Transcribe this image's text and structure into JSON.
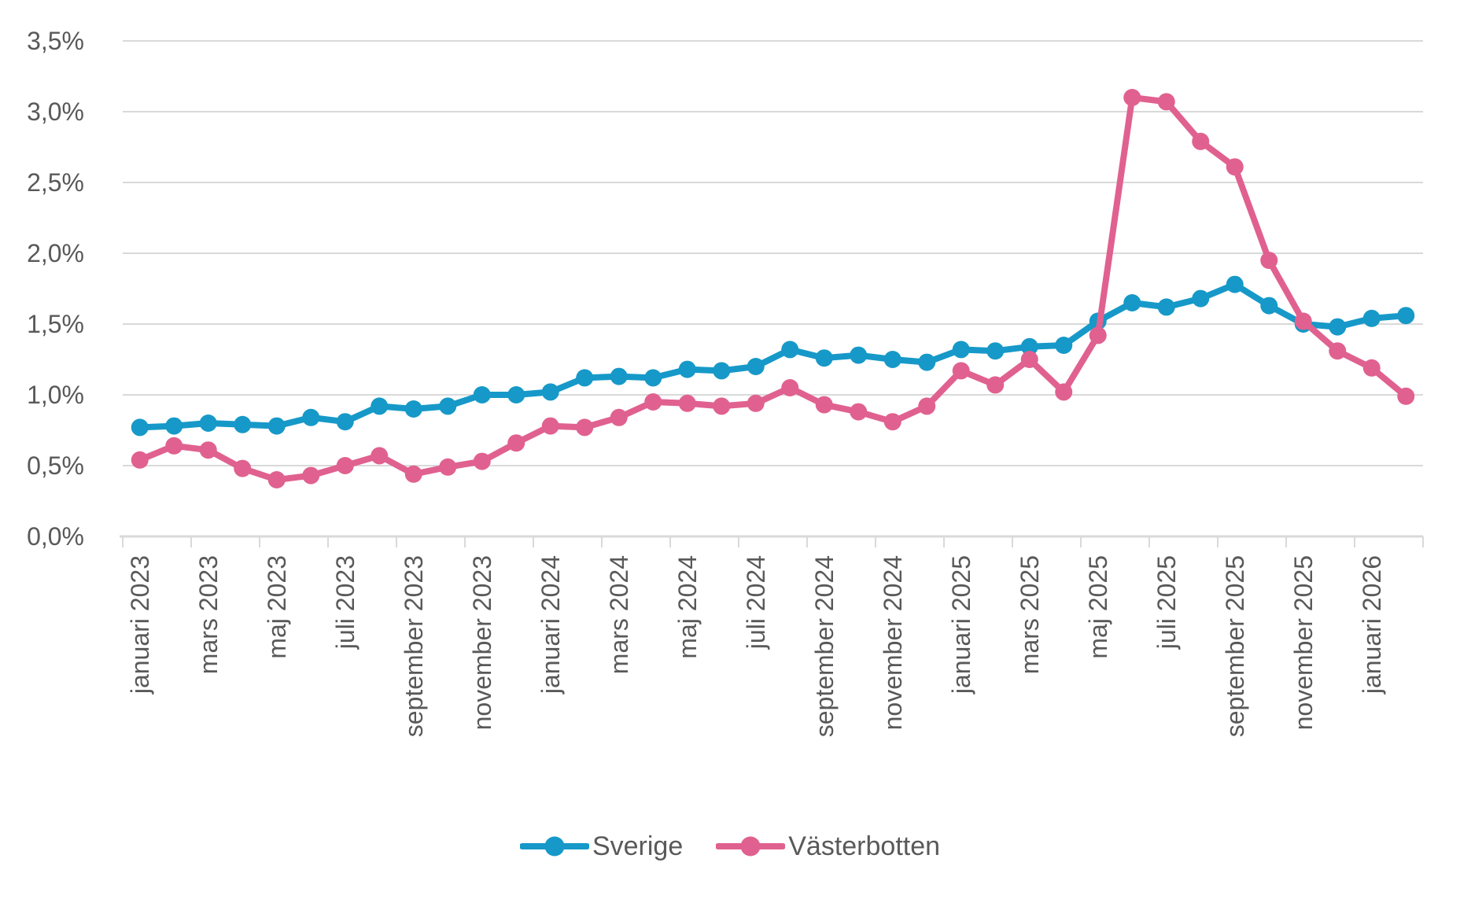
{
  "chart_data": {
    "type": "line",
    "title": "",
    "xlabel": "",
    "ylabel": "",
    "categories": [
      "januari 2023",
      "februari 2023",
      "mars 2023",
      "april 2023",
      "maj 2023",
      "juni 2023",
      "juli 2023",
      "augusti 2023",
      "september 2023",
      "oktober 2023",
      "november 2023",
      "december 2023",
      "januari 2024",
      "februari 2024",
      "mars 2024",
      "april 2024",
      "maj 2024",
      "juni 2024",
      "juli 2024",
      "augusti 2024",
      "september 2024",
      "oktober 2024",
      "november 2024",
      "december 2024",
      "januari 2025",
      "februari 2025",
      "mars 2025",
      "april 2025",
      "maj 2025",
      "juni 2025",
      "juli 2025",
      "augusti 2025",
      "september 2025",
      "oktober 2025",
      "november 2025",
      "december 2025",
      "januari 2026",
      "februari 2026"
    ],
    "x_label_every": 2,
    "series": [
      {
        "name": "Sverige",
        "color": "#1699C8",
        "values": [
          0.77,
          0.78,
          0.8,
          0.79,
          0.78,
          0.84,
          0.81,
          0.92,
          0.9,
          0.92,
          1.0,
          1.0,
          1.02,
          1.12,
          1.13,
          1.12,
          1.18,
          1.17,
          1.2,
          1.32,
          1.26,
          1.28,
          1.25,
          1.23,
          1.32,
          1.31,
          1.34,
          1.35,
          1.52,
          1.65,
          1.62,
          1.68,
          1.78,
          1.63,
          1.5,
          1.48,
          1.54,
          1.56
        ]
      },
      {
        "name": "Västerbotten",
        "color": "#E0618F",
        "values": [
          0.54,
          0.64,
          0.61,
          0.48,
          0.4,
          0.43,
          0.5,
          0.57,
          0.44,
          0.49,
          0.53,
          0.66,
          0.78,
          0.77,
          0.84,
          0.95,
          0.94,
          0.92,
          0.94,
          1.05,
          0.93,
          0.88,
          0.81,
          0.92,
          1.17,
          1.07,
          1.25,
          1.02,
          1.42,
          3.1,
          3.07,
          2.79,
          2.61,
          1.95,
          1.52,
          1.31,
          1.19,
          0.99
        ]
      }
    ],
    "ylim": [
      0,
      3.5
    ],
    "y_ticks": [
      0,
      0.5,
      1.0,
      1.5,
      2.0,
      2.5,
      3.0,
      3.5
    ],
    "y_tick_labels": [
      "0,0%",
      "0,5%",
      "1,0%",
      "1,5%",
      "2,0%",
      "2,5%",
      "3,0%",
      "3,5%"
    ],
    "grid": "horizontal",
    "legend_position": "bottom"
  },
  "style": {
    "grid_color": "#D9D9D9",
    "axis_color": "#D9D9D9",
    "label_color": "#595959",
    "background": "#ffffff"
  }
}
